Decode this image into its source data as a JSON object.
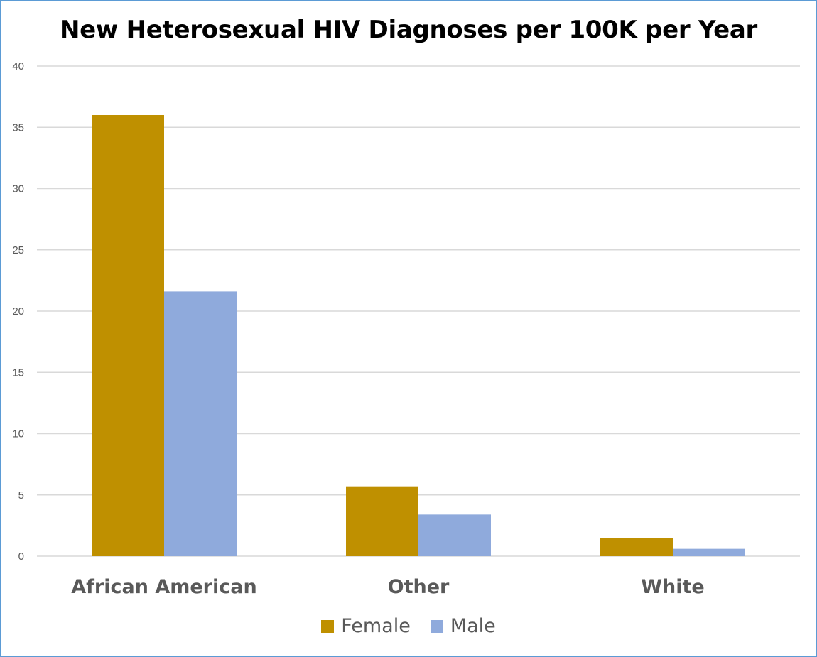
{
  "chart_data": {
    "type": "bar",
    "title": "New Heterosexual HIV Diagnoses per 100K per Year",
    "xlabel": "",
    "ylabel": "",
    "categories": [
      "African American",
      "Other",
      "White"
    ],
    "series": [
      {
        "name": "Female",
        "color": "#bf9000",
        "values": [
          36.0,
          5.7,
          1.5
        ]
      },
      {
        "name": "Male",
        "color": "#8faadc",
        "values": [
          21.6,
          3.4,
          0.6
        ]
      }
    ],
    "ylim": [
      0,
      40
    ],
    "yticks": [
      0,
      5,
      10,
      15,
      20,
      25,
      30,
      35,
      40
    ],
    "grid": true,
    "legend_position": "bottom",
    "colors": {
      "gridline": "#d9d9d9",
      "border": "#5b9bd5",
      "label": "#595959"
    }
  }
}
